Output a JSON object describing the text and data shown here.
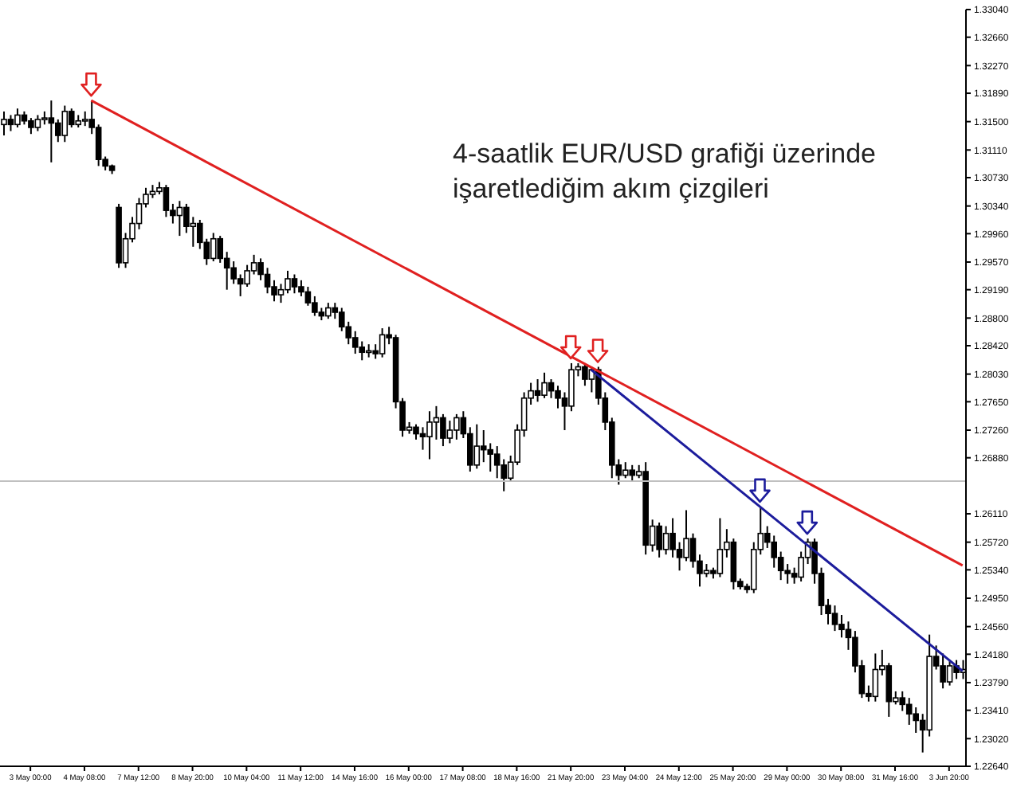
{
  "chart_data": {
    "type": "candlestick",
    "color": "#000000",
    "categories": [
      null,
      null,
      null,
      null,
      "3 May 00:00",
      null,
      null,
      null,
      null,
      null,
      null,
      null,
      "4 May 08:00",
      null,
      null,
      null,
      null,
      null,
      null,
      null,
      "7 May 12:00",
      null,
      null,
      null,
      null,
      null,
      null,
      null,
      "8 May 20:00",
      null,
      null,
      null,
      null,
      null,
      null,
      null,
      "10 May 04:00",
      null,
      null,
      null,
      null,
      null,
      null,
      null,
      "11 May 12:00",
      null,
      null,
      null,
      null,
      null,
      null,
      null,
      "14 May 16:00",
      null,
      null,
      null,
      null,
      null,
      null,
      null,
      "16 May 00:00",
      null,
      null,
      null,
      null,
      null,
      null,
      null,
      "17 May 08:00",
      null,
      null,
      null,
      null,
      null,
      null,
      null,
      "18 May 16:00",
      null,
      null,
      null,
      null,
      null,
      null,
      null,
      "21 May 20:00",
      null,
      null,
      null,
      null,
      null,
      null,
      null,
      "23 May 04:00",
      null,
      null,
      null,
      null,
      null,
      null,
      null,
      "24 May 12:00",
      null,
      null,
      null,
      null,
      null,
      null,
      null,
      "25 May 20:00",
      null,
      null,
      null,
      null,
      null,
      null,
      null,
      "29 May 00:00",
      null,
      null,
      null,
      null,
      null,
      null,
      null,
      "30 May 08:00",
      null,
      null,
      null,
      null,
      null,
      null,
      null,
      "31 May 16:00",
      null,
      null,
      null,
      null,
      null,
      null,
      null,
      "3 Jun 20:00",
      null,
      null
    ],
    "ohlc": [
      [
        1.3146,
        1.3164,
        1.3131,
        1.3153
      ],
      [
        1.3153,
        1.3159,
        1.3137,
        1.3146
      ],
      [
        1.3146,
        1.3168,
        1.3142,
        1.3159
      ],
      [
        1.3159,
        1.3164,
        1.3146,
        1.3151
      ],
      [
        1.3151,
        1.3155,
        1.3133,
        1.3142
      ],
      [
        1.3142,
        1.3159,
        1.3137,
        1.3153
      ],
      [
        1.3153,
        1.3164,
        1.3146,
        1.3155
      ],
      [
        1.3155,
        1.3179,
        1.3094,
        1.3148
      ],
      [
        1.3148,
        1.3153,
        1.3122,
        1.3131
      ],
      [
        1.3131,
        1.3172,
        1.3122,
        1.3164
      ],
      [
        1.3164,
        1.3168,
        1.3142,
        1.3146
      ],
      [
        1.3146,
        1.3159,
        1.3142,
        1.3151
      ],
      [
        1.3151,
        1.3164,
        1.3144,
        1.3153
      ],
      [
        1.3153,
        1.3179,
        1.3133,
        1.3142
      ],
      [
        1.3142,
        1.3146,
        1.3089,
        1.3098
      ],
      [
        1.3098,
        1.3102,
        1.3083,
        1.3089
      ],
      [
        1.3089,
        1.3091,
        1.3078,
        1.3083
      ],
      [
        1.3032,
        1.3037,
        1.2949,
        1.2956
      ],
      [
        1.2956,
        1.2997,
        1.2949,
        1.2989
      ],
      [
        1.2989,
        1.3019,
        1.2984,
        1.301
      ],
      [
        1.301,
        1.3045,
        1.3002,
        1.3037
      ],
      [
        1.3037,
        1.3059,
        1.3032,
        1.305
      ],
      [
        1.305,
        1.3063,
        1.3045,
        1.3054
      ],
      [
        1.3054,
        1.3067,
        1.305,
        1.3059
      ],
      [
        1.3059,
        1.3063,
        1.3019,
        1.3028
      ],
      [
        1.3028,
        1.3037,
        1.301,
        1.3021
      ],
      [
        1.3021,
        1.3041,
        1.2993,
        1.3032
      ],
      [
        1.3032,
        1.3037,
        1.2997,
        1.3006
      ],
      [
        1.3006,
        1.3019,
        1.2978,
        1.301
      ],
      [
        1.301,
        1.3015,
        1.2975,
        1.2984
      ],
      [
        1.2984,
        1.2989,
        1.2953,
        1.2962
      ],
      [
        1.2962,
        1.2997,
        1.2958,
        1.2989
      ],
      [
        1.2989,
        1.2993,
        1.2956,
        1.2962
      ],
      [
        1.2962,
        1.2971,
        1.2919,
        1.2949
      ],
      [
        1.2949,
        1.2958,
        1.2927,
        1.2934
      ],
      [
        1.2934,
        1.294,
        1.291,
        1.2927
      ],
      [
        1.2927,
        1.2953,
        1.2923,
        1.2945
      ],
      [
        1.2945,
        1.2967,
        1.294,
        1.2956
      ],
      [
        1.2956,
        1.2962,
        1.2932,
        1.294
      ],
      [
        1.294,
        1.2949,
        1.2914,
        1.2923
      ],
      [
        1.2923,
        1.2932,
        1.2903,
        1.2912
      ],
      [
        1.2912,
        1.2927,
        1.2901,
        1.2919
      ],
      [
        1.2919,
        1.2945,
        1.2914,
        1.2934
      ],
      [
        1.2934,
        1.294,
        1.2914,
        1.2923
      ],
      [
        1.2923,
        1.2932,
        1.291,
        1.2916
      ],
      [
        1.2916,
        1.2923,
        1.2897,
        1.2901
      ],
      [
        1.2901,
        1.291,
        1.2883,
        1.2888
      ],
      [
        1.2888,
        1.2894,
        1.2877,
        1.2883
      ],
      [
        1.2883,
        1.2901,
        1.2879,
        1.2894
      ],
      [
        1.2894,
        1.2901,
        1.2879,
        1.2888
      ],
      [
        1.2888,
        1.2894,
        1.2862,
        1.2868
      ],
      [
        1.2868,
        1.2875,
        1.2844,
        1.2853
      ],
      [
        1.2853,
        1.2862,
        1.2831,
        1.284
      ],
      [
        1.284,
        1.2848,
        1.2822,
        1.2833
      ],
      [
        1.2833,
        1.2844,
        1.2826,
        1.2835
      ],
      [
        1.2835,
        1.2844,
        1.2824,
        1.2831
      ],
      [
        1.2831,
        1.2866,
        1.2826,
        1.2857
      ],
      [
        1.2857,
        1.2868,
        1.2844,
        1.2853
      ],
      [
        1.2853,
        1.2857,
        1.2756,
        1.2765
      ],
      [
        1.2765,
        1.277,
        1.2717,
        1.2726
      ],
      [
        1.2726,
        1.2737,
        1.2721,
        1.273
      ],
      [
        1.273,
        1.2734,
        1.2713,
        1.2721
      ],
      [
        1.2721,
        1.273,
        1.2699,
        1.2717
      ],
      [
        1.2717,
        1.2752,
        1.2686,
        1.2737
      ],
      [
        1.2737,
        1.2759,
        1.2713,
        1.2743
      ],
      [
        1.2743,
        1.2748,
        1.2704,
        1.2715
      ],
      [
        1.2715,
        1.2739,
        1.2708,
        1.2726
      ],
      [
        1.2726,
        1.2748,
        1.2713,
        1.2743
      ],
      [
        1.2743,
        1.2752,
        1.2715,
        1.2721
      ],
      [
        1.2721,
        1.273,
        1.2669,
        1.2678
      ],
      [
        1.2678,
        1.2734,
        1.2673,
        1.2704
      ],
      [
        1.2704,
        1.2726,
        1.2682,
        1.2699
      ],
      [
        1.2699,
        1.2708,
        1.2669,
        1.2693
      ],
      [
        1.2693,
        1.2704,
        1.266,
        1.2678
      ],
      [
        1.2678,
        1.2686,
        1.2642,
        1.266
      ],
      [
        1.266,
        1.2691,
        1.2656,
        1.2682
      ],
      [
        1.2682,
        1.2734,
        1.2678,
        1.2726
      ],
      [
        1.2726,
        1.2778,
        1.2717,
        1.277
      ],
      [
        1.277,
        1.2791,
        1.2761,
        1.278
      ],
      [
        1.278,
        1.2796,
        1.2765,
        1.2774
      ],
      [
        1.2774,
        1.2805,
        1.277,
        1.2791
      ],
      [
        1.2791,
        1.2796,
        1.277,
        1.278
      ],
      [
        1.278,
        1.2787,
        1.2756,
        1.277
      ],
      [
        1.277,
        1.2778,
        1.2726,
        1.2759
      ],
      [
        1.2759,
        1.2818,
        1.2752,
        1.2809
      ],
      [
        1.2809,
        1.2818,
        1.28,
        1.2813
      ],
      [
        1.2813,
        1.2818,
        1.2787,
        1.2796
      ],
      [
        1.2796,
        1.2813,
        1.2778,
        1.2809
      ],
      [
        1.2809,
        1.2813,
        1.2761,
        1.277
      ],
      [
        1.277,
        1.2778,
        1.2726,
        1.2737
      ],
      [
        1.2737,
        1.2743,
        1.266,
        1.2678
      ],
      [
        1.2678,
        1.2686,
        1.2651,
        1.2664
      ],
      [
        1.2664,
        1.2682,
        1.266,
        1.2671
      ],
      [
        1.2671,
        1.2678,
        1.2656,
        1.2664
      ],
      [
        1.2664,
        1.2678,
        1.266,
        1.2669
      ],
      [
        1.2669,
        1.2682,
        1.2555,
        1.2568
      ],
      [
        1.2568,
        1.2603,
        1.2559,
        1.2594
      ],
      [
        1.2594,
        1.2599,
        1.2551,
        1.2562
      ],
      [
        1.2562,
        1.2594,
        1.2555,
        1.2584
      ],
      [
        1.2584,
        1.2605,
        1.2551,
        1.2562
      ],
      [
        1.2562,
        1.2572,
        1.2533,
        1.2551
      ],
      [
        1.2551,
        1.2616,
        1.2546,
        1.2577
      ],
      [
        1.2577,
        1.2584,
        1.2537,
        1.2546
      ],
      [
        1.2546,
        1.2555,
        1.2511,
        1.2529
      ],
      [
        1.2529,
        1.2542,
        1.2524,
        1.2533
      ],
      [
        1.2533,
        1.2537,
        1.2522,
        1.2529
      ],
      [
        1.2529,
        1.2605,
        1.2524,
        1.2562
      ],
      [
        1.2562,
        1.259,
        1.2551,
        1.2572
      ],
      [
        1.2572,
        1.2577,
        1.2507,
        1.2518
      ],
      [
        1.2518,
        1.2522,
        1.2507,
        1.2511
      ],
      [
        1.2511,
        1.2515,
        1.2502,
        1.2507
      ],
      [
        1.2507,
        1.2572,
        1.2502,
        1.2562
      ],
      [
        1.2562,
        1.2621,
        1.2555,
        1.2584
      ],
      [
        1.2584,
        1.2594,
        1.2564,
        1.2572
      ],
      [
        1.2572,
        1.2581,
        1.2537,
        1.2551
      ],
      [
        1.2551,
        1.2559,
        1.252,
        1.2533
      ],
      [
        1.2533,
        1.2542,
        1.2515,
        1.2529
      ],
      [
        1.2529,
        1.2537,
        1.2515,
        1.2524
      ],
      [
        1.2524,
        1.2559,
        1.2518,
        1.2551
      ],
      [
        1.2551,
        1.2577,
        1.2542,
        1.2572
      ],
      [
        1.2572,
        1.2577,
        1.2515,
        1.2529
      ],
      [
        1.2529,
        1.2537,
        1.2472,
        1.2485
      ],
      [
        1.2485,
        1.2494,
        1.2459,
        1.2474
      ],
      [
        1.2474,
        1.2485,
        1.245,
        1.2459
      ],
      [
        1.2459,
        1.2472,
        1.2441,
        1.2452
      ],
      [
        1.2452,
        1.2463,
        1.2424,
        1.2441
      ],
      [
        1.2441,
        1.245,
        1.2393,
        1.2402
      ],
      [
        1.2402,
        1.241,
        1.2358,
        1.2364
      ],
      [
        1.2364,
        1.2375,
        1.2353,
        1.236
      ],
      [
        1.236,
        1.2419,
        1.2353,
        1.2397
      ],
      [
        1.2397,
        1.2424,
        1.2389,
        1.2402
      ],
      [
        1.2402,
        1.2406,
        1.2332,
        1.2353
      ],
      [
        1.2353,
        1.2367,
        1.2349,
        1.2358
      ],
      [
        1.2358,
        1.2367,
        1.234,
        1.2349
      ],
      [
        1.2349,
        1.2358,
        1.2321,
        1.2336
      ],
      [
        1.2336,
        1.2345,
        1.231,
        1.2327
      ],
      [
        1.2327,
        1.2336,
        1.2283,
        1.2314
      ],
      [
        1.2314,
        1.2445,
        1.2305,
        1.2415
      ],
      [
        1.2415,
        1.243,
        1.2397,
        1.2402
      ],
      [
        1.2402,
        1.2419,
        1.2371,
        1.238
      ],
      [
        1.238,
        1.241,
        1.2375,
        1.2402
      ],
      [
        1.2402,
        1.241,
        1.2384,
        1.2393
      ],
      [
        1.2393,
        1.241,
        1.2384,
        1.2397
      ]
    ],
    "series": [
      {
        "type": "line",
        "color": "#e02020",
        "values": [
          null,
          null,
          null,
          null,
          null,
          null,
          null,
          null,
          null,
          null,
          null,
          null,
          null,
          1.3179,
          null,
          null,
          null,
          null,
          null,
          null,
          null,
          null,
          null,
          null,
          null,
          null,
          null,
          null,
          null,
          null,
          null,
          null,
          null,
          null,
          null,
          null,
          null,
          null,
          null,
          null,
          null,
          null,
          null,
          null,
          null,
          null,
          null,
          null,
          null,
          null,
          null,
          null,
          null,
          null,
          null,
          null,
          null,
          null,
          null,
          null,
          null,
          null,
          null,
          null,
          null,
          null,
          null,
          null,
          null,
          null,
          null,
          null,
          null,
          null,
          null,
          null,
          null,
          null,
          null,
          null,
          null,
          null,
          null,
          null,
          null,
          null,
          null,
          null,
          null,
          null,
          null,
          null,
          null,
          null,
          null,
          null,
          null,
          null,
          null,
          null,
          null,
          null,
          null,
          null,
          null,
          null,
          null,
          null,
          null,
          null,
          null,
          null,
          null,
          null,
          null,
          null,
          null,
          null,
          null,
          null,
          null,
          null,
          null,
          null,
          null,
          null,
          null,
          null,
          null,
          null,
          null,
          null,
          null,
          null,
          null,
          null,
          null,
          null,
          null,
          null,
          null,
          null,
          1.254
        ]
      },
      {
        "type": "line",
        "color": "#1c1c9c",
        "values": [
          null,
          null,
          null,
          null,
          null,
          null,
          null,
          null,
          null,
          null,
          null,
          null,
          null,
          null,
          null,
          null,
          null,
          null,
          null,
          null,
          null,
          null,
          null,
          null,
          null,
          null,
          null,
          null,
          null,
          null,
          null,
          null,
          null,
          null,
          null,
          null,
          null,
          null,
          null,
          null,
          null,
          null,
          null,
          null,
          null,
          null,
          null,
          null,
          null,
          null,
          null,
          null,
          null,
          null,
          null,
          null,
          null,
          null,
          null,
          null,
          null,
          null,
          null,
          null,
          null,
          null,
          null,
          null,
          null,
          null,
          null,
          null,
          null,
          null,
          null,
          null,
          null,
          null,
          null,
          null,
          null,
          null,
          null,
          null,
          null,
          null,
          null,
          1.2809,
          null,
          null,
          null,
          null,
          null,
          null,
          null,
          null,
          null,
          null,
          null,
          null,
          null,
          null,
          null,
          null,
          null,
          null,
          null,
          null,
          null,
          null,
          null,
          null,
          null,
          null,
          null,
          null,
          null,
          null,
          null,
          null,
          null,
          null,
          null,
          null,
          null,
          null,
          null,
          null,
          null,
          null,
          null,
          null,
          null,
          null,
          null,
          null,
          null,
          null,
          null,
          null,
          null,
          null,
          1.2395
        ]
      }
    ],
    "ref_lines": [
      {
        "axis": "y",
        "value": 1.2656,
        "color": "#c0c0c0"
      }
    ],
    "annotations": [
      "4-saatlik EUR/USD grafiği üzerinde işaretlediğim akım çizgileri"
    ],
    "ylim": [
      1.2264,
      1.3304
    ],
    "yticks": [
      {
        "value": 1.3304,
        "label": "1.33040"
      },
      {
        "value": 1.3266,
        "label": "1.32660"
      },
      {
        "value": 1.3227,
        "label": "1.32270"
      },
      {
        "value": 1.3189,
        "label": "1.31890"
      },
      {
        "value": 1.315,
        "label": "1.31500"
      },
      {
        "value": 1.3111,
        "label": "1.31110"
      },
      {
        "value": 1.3073,
        "label": "1.30730"
      },
      {
        "value": 1.3034,
        "label": "1.30340"
      },
      {
        "value": 1.2996,
        "label": "1.29960"
      },
      {
        "value": 1.2957,
        "label": "1.29570"
      },
      {
        "value": 1.2919,
        "label": "1.29190"
      },
      {
        "value": 1.288,
        "label": "1.28800"
      },
      {
        "value": 1.2842,
        "label": "1.28420"
      },
      {
        "value": 1.2803,
        "label": "1.28030"
      },
      {
        "value": 1.2765,
        "label": "1.27650"
      },
      {
        "value": 1.2726,
        "label": "1.27260"
      },
      {
        "value": 1.2688,
        "label": "1.26880"
      },
      {
        "value": 1.2611,
        "label": "1.26110"
      },
      {
        "value": 1.2572,
        "label": "1.25720"
      },
      {
        "value": 1.2534,
        "label": "1.25340"
      },
      {
        "value": 1.2495,
        "label": "1.24950"
      },
      {
        "value": 1.2456,
        "label": "1.24560"
      },
      {
        "value": 1.2418,
        "label": "1.24180"
      },
      {
        "value": 1.2379,
        "label": "1.23790"
      },
      {
        "value": 1.2341,
        "label": "1.23410"
      },
      {
        "value": 1.2302,
        "label": "1.23020"
      },
      {
        "value": 1.2264,
        "label": "1.22640"
      }
    ]
  }
}
